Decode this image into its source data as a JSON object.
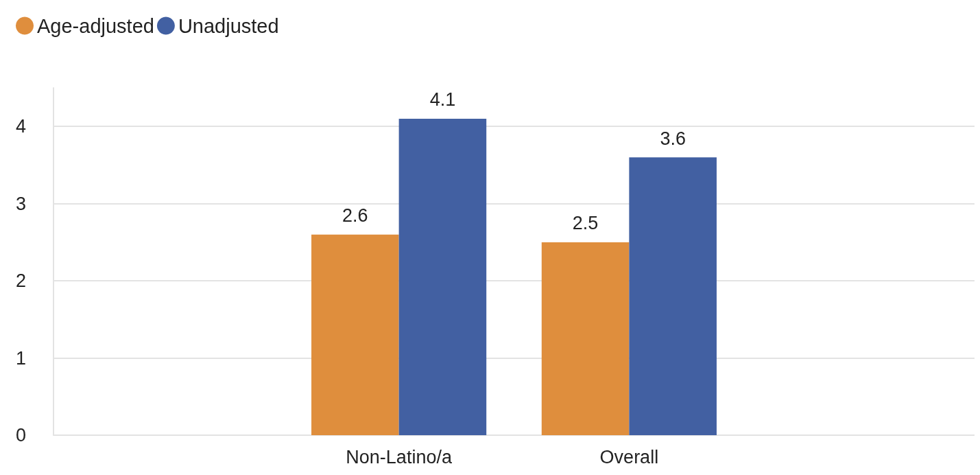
{
  "chart_data": {
    "type": "bar",
    "categories": [
      null,
      "Non-Latino/a",
      "Overall",
      null
    ],
    "series": [
      {
        "name": "Age-adjusted",
        "color": "#df8e3d",
        "values": [
          null,
          2.6,
          2.5,
          null
        ]
      },
      {
        "name": "Unadjusted",
        "color": "#4260a2",
        "values": [
          null,
          4.1,
          3.6,
          null
        ]
      }
    ],
    "ylim": [
      0,
      4.5
    ],
    "yticks": [
      0,
      1,
      2,
      3,
      4
    ],
    "grid": "y",
    "legend": "top left",
    "data_labels": true
  }
}
